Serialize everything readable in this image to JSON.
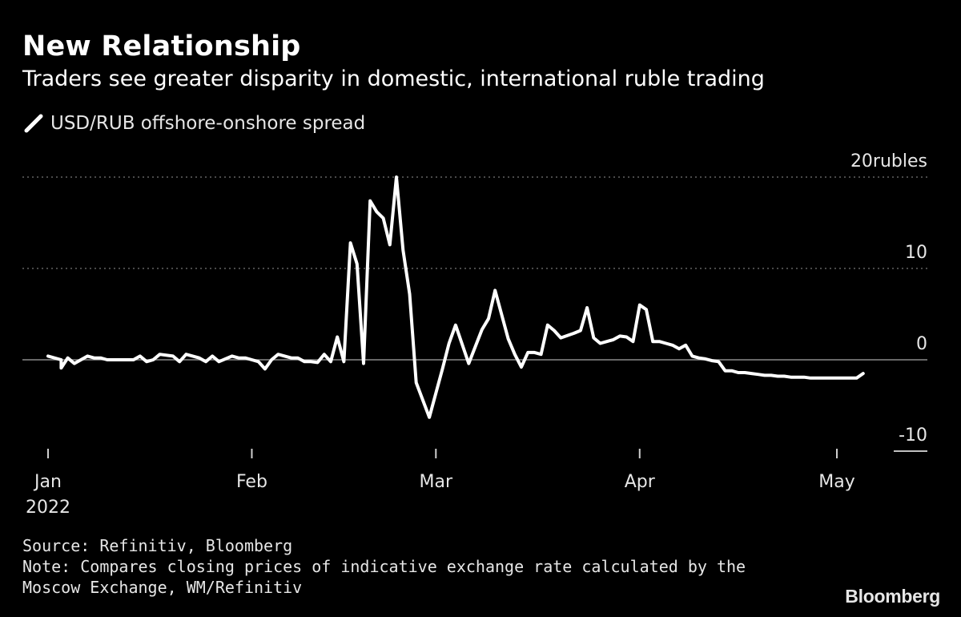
{
  "header": {
    "title": "New Relationship",
    "subtitle": "Traders see greater disparity in domestic, international ruble trading"
  },
  "legend": {
    "label": "USD/RUB offshore-onshore spread",
    "icon": "slash-line-icon",
    "color": "#ffffff"
  },
  "footer": {
    "source": "Source: Refinitiv, Bloomberg",
    "note_line1": "Note: Compares closing prices of indicative exchange rate calculated by the",
    "note_line2": "Moscow Exchange, WM/Refinitiv"
  },
  "brand": "Bloomberg",
  "chart_data": {
    "type": "line",
    "title": "New Relationship",
    "subtitle": "Traders see greater disparity in domestic, international ruble trading",
    "ylabel": "",
    "xlabel": "",
    "ylim": [
      -10,
      20
    ],
    "yticks": [
      {
        "value": 20,
        "label": "20",
        "unit": "rubles"
      },
      {
        "value": 10,
        "label": "10",
        "unit": ""
      },
      {
        "value": 0,
        "label": "0",
        "unit": ""
      },
      {
        "value": -10,
        "label": "-10",
        "unit": ""
      }
    ],
    "xticks": [
      {
        "date": "2022-01-01",
        "label": "Jan",
        "sublabel": "2022"
      },
      {
        "date": "2022-02-01",
        "label": "Feb",
        "sublabel": ""
      },
      {
        "date": "2022-03-01",
        "label": "Mar",
        "sublabel": ""
      },
      {
        "date": "2022-04-01",
        "label": "Apr",
        "sublabel": ""
      },
      {
        "date": "2022-05-01",
        "label": "May",
        "sublabel": ""
      }
    ],
    "grid": true,
    "legend_position": "top-left",
    "line_color": "#ffffff",
    "series": [
      {
        "name": "USD/RUB offshore-onshore spread",
        "x": [
          "2022-01-01",
          "2022-01-03",
          "2022-01-03",
          "2022-01-04",
          "2022-01-05",
          "2022-01-07",
          "2022-01-08",
          "2022-01-09",
          "2022-01-10",
          "2022-01-11",
          "2022-01-12",
          "2022-01-13",
          "2022-01-14",
          "2022-01-15",
          "2022-01-16",
          "2022-01-17",
          "2022-01-18",
          "2022-01-20",
          "2022-01-21",
          "2022-01-22",
          "2022-01-23",
          "2022-01-24",
          "2022-01-25",
          "2022-01-26",
          "2022-01-27",
          "2022-01-29",
          "2022-01-30",
          "2022-01-31",
          "2022-02-01",
          "2022-02-02",
          "2022-02-03",
          "2022-02-04",
          "2022-02-05",
          "2022-02-06",
          "2022-02-07",
          "2022-02-08",
          "2022-02-09",
          "2022-02-10",
          "2022-02-11",
          "2022-02-12",
          "2022-02-13",
          "2022-02-14",
          "2022-02-15",
          "2022-02-16",
          "2022-02-17",
          "2022-02-18",
          "2022-02-19",
          "2022-02-20",
          "2022-02-21",
          "2022-02-22",
          "2022-02-23",
          "2022-02-24",
          "2022-02-25",
          "2022-02-26",
          "2022-02-28",
          "2022-03-02",
          "2022-03-03",
          "2022-03-04",
          "2022-03-06",
          "2022-03-08",
          "2022-03-09",
          "2022-03-10",
          "2022-03-12",
          "2022-03-13",
          "2022-03-14",
          "2022-03-15",
          "2022-03-16",
          "2022-03-17",
          "2022-03-18",
          "2022-03-19",
          "2022-03-20",
          "2022-03-22",
          "2022-03-23",
          "2022-03-24",
          "2022-03-25",
          "2022-03-26",
          "2022-03-27",
          "2022-03-28",
          "2022-03-29",
          "2022-03-30",
          "2022-03-31",
          "2022-04-01",
          "2022-04-02",
          "2022-04-03",
          "2022-04-04",
          "2022-04-05",
          "2022-04-06",
          "2022-04-07",
          "2022-04-08",
          "2022-04-09",
          "2022-04-10",
          "2022-04-11",
          "2022-04-12",
          "2022-04-13",
          "2022-04-14",
          "2022-04-15",
          "2022-04-16",
          "2022-04-17",
          "2022-04-18",
          "2022-04-19",
          "2022-04-20",
          "2022-04-21",
          "2022-04-22",
          "2022-04-23",
          "2022-04-24",
          "2022-04-25",
          "2022-04-26",
          "2022-04-27",
          "2022-04-28",
          "2022-04-29",
          "2022-04-30",
          "2022-05-01",
          "2022-05-02",
          "2022-05-03",
          "2022-05-04",
          "2022-05-05"
        ],
        "values": [
          0.4,
          0,
          -0.9,
          0.2,
          -0.4,
          0.4,
          0.2,
          0.2,
          0,
          0,
          0,
          0,
          0,
          0.4,
          -0.2,
          0,
          0.6,
          0.4,
          -0.2,
          0.6,
          0.4,
          0.2,
          -0.2,
          0.4,
          -0.2,
          0.4,
          0.2,
          0.2,
          0,
          -0.2,
          -1,
          0,
          0.6,
          0.4,
          0.2,
          0.2,
          -0.2,
          -0.2,
          -0.3,
          0.6,
          -0.2,
          2.5,
          -0.2,
          12.8,
          10.5,
          -0.4,
          17.4,
          16.2,
          15.5,
          12.6,
          20,
          12,
          7.2,
          -2.5,
          -6.3,
          -1,
          1.8,
          3.8,
          -0.4,
          3.3,
          4.5,
          7.6,
          2.3,
          0.6,
          -0.8,
          0.8,
          0.8,
          0.6,
          3.8,
          3.2,
          2.4,
          2.9,
          3.2,
          5.7,
          2.4,
          1.8,
          2,
          2.2,
          2.6,
          2.5,
          2,
          6,
          5.5,
          2,
          2,
          1.8,
          1.6,
          1.2,
          1.6,
          0.4,
          0.2,
          0.1,
          -0.1,
          -0.2,
          -1.2,
          -1.2,
          -1.4,
          -1.4,
          -1.5,
          -1.6,
          -1.7,
          -1.7,
          -1.8,
          -1.8,
          -1.9,
          -1.9,
          -1.9,
          -2,
          -2,
          -2,
          -2,
          -2,
          -2,
          -2,
          -2,
          -1.5
        ]
      }
    ]
  }
}
